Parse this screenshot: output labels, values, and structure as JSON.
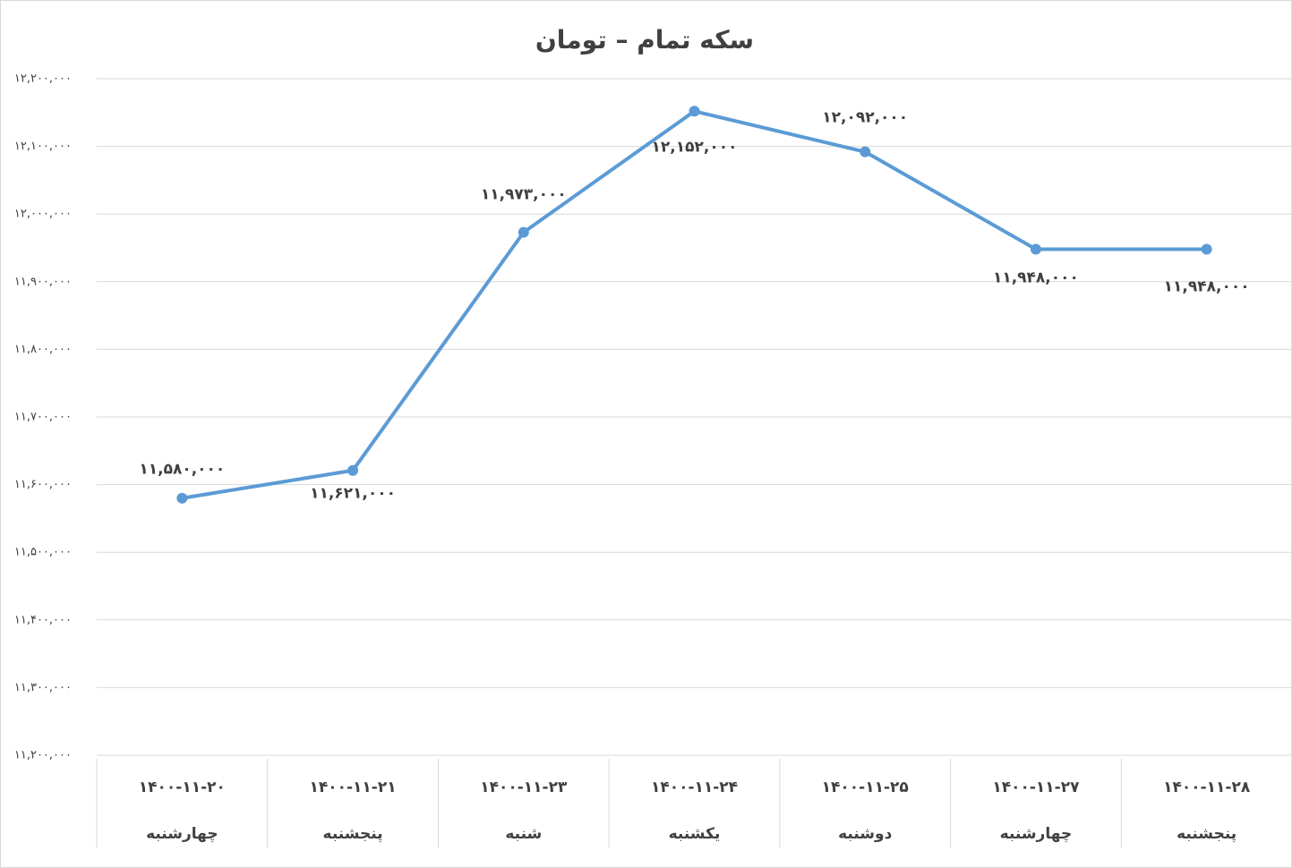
{
  "chart_data": {
    "type": "line",
    "title": "سکه تمام – تومان",
    "categories": [
      "۱۴۰۰-۱۱-۲۰",
      "۱۴۰۰-۱۱-۲۱",
      "۱۴۰۰-۱۱-۲۳",
      "۱۴۰۰-۱۱-۲۴",
      "۱۴۰۰-۱۱-۲۵",
      "۱۴۰۰-۱۱-۲۷",
      "۱۴۰۰-۱۱-۲۸"
    ],
    "weekdays": [
      "چهارشنبه",
      "پنجشنبه",
      "شنبه",
      "یکشنبه",
      "دوشنبه",
      "چهارشنبه",
      "پنجشنبه"
    ],
    "series": [
      {
        "color": "#5b9bd5",
        "values": [
          11580000,
          11621000,
          11973000,
          12152000,
          12092000,
          11948000,
          11948000
        ],
        "value_labels": [
          "۱۱,۵۸۰,۰۰۰",
          "۱۱,۶۲۱,۰۰۰",
          "۱۱,۹۷۳,۰۰۰",
          "۱۲,۱۵۲,۰۰۰",
          "۱۲,۰۹۲,۰۰۰",
          "۱۱,۹۴۸,۰۰۰",
          "۱۱,۹۴۸,۰۰۰"
        ]
      }
    ],
    "ylim": [
      11200000,
      12200000
    ],
    "yticks": [
      {
        "value": 11200000,
        "label": "۱۱,۲۰۰,۰۰۰"
      },
      {
        "value": 11300000,
        "label": "۱۱,۳۰۰,۰۰۰"
      },
      {
        "value": 11400000,
        "label": "۱۱,۴۰۰,۰۰۰"
      },
      {
        "value": 11500000,
        "label": "۱۱,۵۰۰,۰۰۰"
      },
      {
        "value": 11600000,
        "label": "۱۱,۶۰۰,۰۰۰"
      },
      {
        "value": 11700000,
        "label": "۱۱,۷۰۰,۰۰۰"
      },
      {
        "value": 11800000,
        "label": "۱۱,۸۰۰,۰۰۰"
      },
      {
        "value": 11900000,
        "label": "۱۱,۹۰۰,۰۰۰"
      },
      {
        "value": 12000000,
        "label": "۱۲,۰۰۰,۰۰۰"
      },
      {
        "value": 12100000,
        "label": "۱۲,۱۰۰,۰۰۰"
      },
      {
        "value": 12200000,
        "label": "۱۲,۲۰۰,۰۰۰"
      }
    ],
    "grid": true
  }
}
